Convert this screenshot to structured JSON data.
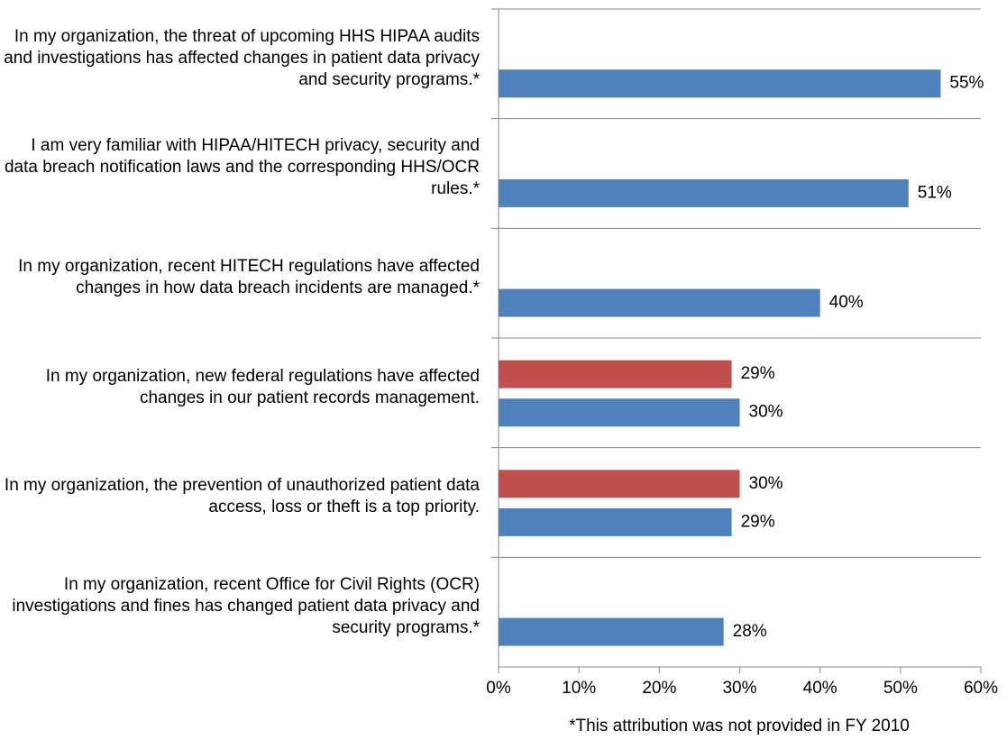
{
  "chart_data": {
    "type": "bar",
    "orientation": "horizontal",
    "categories": [
      "In my organization, the threat of upcoming HHS HIPAA audits and investigations has affected changes in patient data privacy and security programs.*",
      "I am very familiar with HIPAA/HITECH privacy, security and data breach notification laws and the corresponding HHS/OCR rules.*",
      "In my organization, recent HITECH regulations have affected changes in how data breach incidents are managed.*",
      "In my organization, new federal regulations have affected changes in our patient records management.",
      "In my organization, the prevention of unauthorized patient data access, loss or theft is a top priority.",
      "In my organization, recent Office for Civil Rights (OCR) investigations and fines has changed patient data privacy and security programs.*"
    ],
    "series": [
      {
        "color": "#c0504d",
        "values": [
          null,
          null,
          null,
          29,
          30,
          null
        ],
        "value_labels": [
          null,
          null,
          null,
          "29%",
          "30%",
          null
        ]
      },
      {
        "color": "#4f81bd",
        "values": [
          55,
          51,
          40,
          30,
          29,
          28
        ],
        "value_labels": [
          "55%",
          "51%",
          "40%",
          "30%",
          "29%",
          "28%"
        ]
      }
    ],
    "xlim": [
      0,
      60
    ],
    "xticks": [
      {
        "value": 0,
        "label": "0%"
      },
      {
        "value": 10,
        "label": "10%"
      },
      {
        "value": 20,
        "label": "20%"
      },
      {
        "value": 30,
        "label": "30%"
      },
      {
        "value": 40,
        "label": "40%"
      },
      {
        "value": 50,
        "label": "50%"
      },
      {
        "value": 60,
        "label": "60%"
      }
    ],
    "xlabel": "*This attribution was not provided in FY 2010"
  }
}
